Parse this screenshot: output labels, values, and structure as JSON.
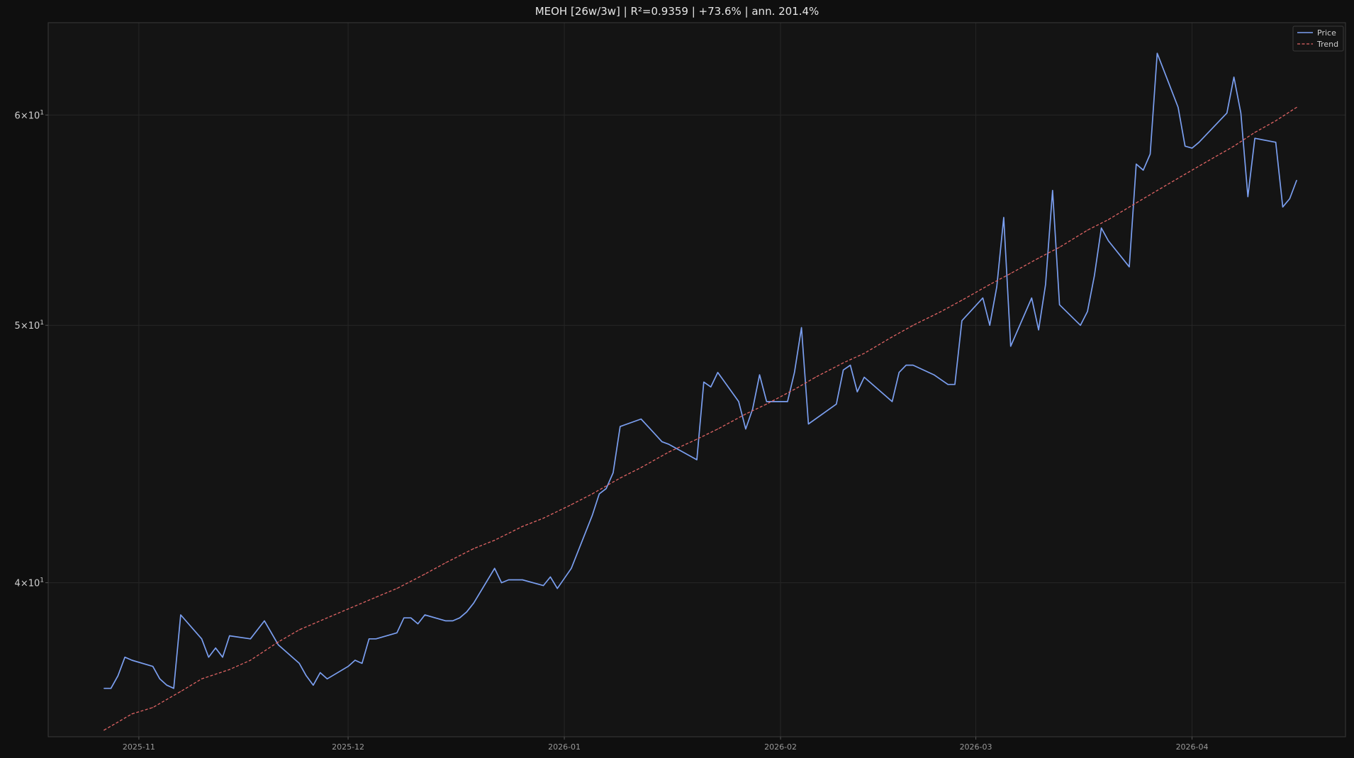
{
  "chart_data": {
    "type": "line",
    "title": "MEOH  [26w/3w]  |  R²=0.9359  |  +73.6%  |  ann. 201.4%",
    "xlabel": "",
    "ylabel": "",
    "x_scale": "date",
    "y_scale": "log",
    "xlim": [
      "2025-10-19",
      "2026-04-23"
    ],
    "ylim": [
      35,
      65
    ],
    "grid": true,
    "legend_position": "top-right",
    "x_ticks": [
      {
        "label": "2025-11",
        "value": "2025-11-01"
      },
      {
        "label": "2025-12",
        "value": "2025-12-01"
      },
      {
        "label": "2026-01",
        "value": "2026-01-01"
      },
      {
        "label": "2026-02",
        "value": "2026-02-01"
      },
      {
        "label": "2026-03",
        "value": "2026-03-01"
      },
      {
        "label": "2026-04",
        "value": "2026-04-01"
      }
    ],
    "y_ticks": [
      {
        "base": "4",
        "exp": "1",
        "value": 40
      },
      {
        "base": "5",
        "exp": "1",
        "value": 50
      },
      {
        "base": "6",
        "exp": "1",
        "value": 60
      }
    ],
    "colors": {
      "background": "#0f0f0f",
      "plot_background": "#141414",
      "frame": "#3a3a3a",
      "grid": "#262626",
      "price": "#7b9ff0",
      "trend": "#e06464"
    },
    "series": [
      {
        "name": "Price",
        "style": "solid",
        "points": [
          [
            "2025-10-27",
            36.5
          ],
          [
            "2025-10-28",
            36.5
          ],
          [
            "2025-10-29",
            36.9
          ],
          [
            "2025-10-30",
            37.5
          ],
          [
            "2025-10-31",
            37.4
          ],
          [
            "2025-11-03",
            37.2
          ],
          [
            "2025-11-04",
            36.8
          ],
          [
            "2025-11-05",
            36.6
          ],
          [
            "2025-11-06",
            36.5
          ],
          [
            "2025-11-07",
            38.9
          ],
          [
            "2025-11-10",
            38.1
          ],
          [
            "2025-11-11",
            37.5
          ],
          [
            "2025-11-12",
            37.8
          ],
          [
            "2025-11-13",
            37.5
          ],
          [
            "2025-11-14",
            38.2
          ],
          [
            "2025-11-17",
            38.1
          ],
          [
            "2025-11-18",
            38.4
          ],
          [
            "2025-11-19",
            38.7
          ],
          [
            "2025-11-20",
            38.3
          ],
          [
            "2025-11-21",
            37.9
          ],
          [
            "2025-11-24",
            37.3
          ],
          [
            "2025-11-25",
            36.9
          ],
          [
            "2025-11-26",
            36.6
          ],
          [
            "2025-11-27",
            37.0
          ],
          [
            "2025-11-28",
            36.8
          ],
          [
            "2025-12-01",
            37.2
          ],
          [
            "2025-12-02",
            37.4
          ],
          [
            "2025-12-03",
            37.3
          ],
          [
            "2025-12-04",
            38.1
          ],
          [
            "2025-12-05",
            38.1
          ],
          [
            "2025-12-08",
            38.3
          ],
          [
            "2025-12-09",
            38.8
          ],
          [
            "2025-12-10",
            38.8
          ],
          [
            "2025-12-11",
            38.6
          ],
          [
            "2025-12-12",
            38.9
          ],
          [
            "2025-12-15",
            38.7
          ],
          [
            "2025-12-16",
            38.7
          ],
          [
            "2025-12-17",
            38.8
          ],
          [
            "2025-12-18",
            39.0
          ],
          [
            "2025-12-19",
            39.3
          ],
          [
            "2025-12-22",
            40.5
          ],
          [
            "2025-12-23",
            40.0
          ],
          [
            "2025-12-24",
            40.1
          ],
          [
            "2025-12-26",
            40.1
          ],
          [
            "2025-12-29",
            39.9
          ],
          [
            "2025-12-30",
            40.2
          ],
          [
            "2025-12-31",
            39.8
          ],
          [
            "2026-01-02",
            40.5
          ],
          [
            "2026-01-05",
            42.4
          ],
          [
            "2026-01-06",
            43.2
          ],
          [
            "2026-01-07",
            43.4
          ],
          [
            "2026-01-08",
            44.0
          ],
          [
            "2026-01-09",
            45.8
          ],
          [
            "2026-01-12",
            46.1
          ],
          [
            "2026-01-13",
            45.8
          ],
          [
            "2026-01-14",
            45.5
          ],
          [
            "2026-01-15",
            45.2
          ],
          [
            "2026-01-16",
            45.1
          ],
          [
            "2026-01-20",
            44.5
          ],
          [
            "2026-01-21",
            47.6
          ],
          [
            "2026-01-22",
            47.4
          ],
          [
            "2026-01-23",
            48.0
          ],
          [
            "2026-01-26",
            46.8
          ],
          [
            "2026-01-27",
            45.7
          ],
          [
            "2026-01-28",
            46.5
          ],
          [
            "2026-01-29",
            47.9
          ],
          [
            "2026-01-30",
            46.8
          ],
          [
            "2026-02-02",
            46.8
          ],
          [
            "2026-02-03",
            48.0
          ],
          [
            "2026-02-04",
            49.9
          ],
          [
            "2026-02-05",
            45.9
          ],
          [
            "2026-02-09",
            46.7
          ],
          [
            "2026-02-10",
            48.1
          ],
          [
            "2026-02-11",
            48.3
          ],
          [
            "2026-02-12",
            47.2
          ],
          [
            "2026-02-13",
            47.8
          ],
          [
            "2026-02-17",
            46.8
          ],
          [
            "2026-02-18",
            48.0
          ],
          [
            "2026-02-19",
            48.3
          ],
          [
            "2026-02-20",
            48.3
          ],
          [
            "2026-02-23",
            47.9
          ],
          [
            "2026-02-24",
            47.7
          ],
          [
            "2026-02-25",
            47.5
          ],
          [
            "2026-02-26",
            47.5
          ],
          [
            "2026-02-27",
            50.2
          ],
          [
            "2026-03-02",
            51.2
          ],
          [
            "2026-03-03",
            50.0
          ],
          [
            "2026-03-04",
            51.7
          ],
          [
            "2026-03-05",
            54.9
          ],
          [
            "2026-03-06",
            49.1
          ],
          [
            "2026-03-09",
            51.2
          ],
          [
            "2026-03-10",
            49.8
          ],
          [
            "2026-03-11",
            51.8
          ],
          [
            "2026-03-12",
            56.2
          ],
          [
            "2026-03-13",
            50.9
          ],
          [
            "2026-03-16",
            50.0
          ],
          [
            "2026-03-17",
            50.6
          ],
          [
            "2026-03-18",
            52.2
          ],
          [
            "2026-03-19",
            54.4
          ],
          [
            "2026-03-20",
            53.8
          ],
          [
            "2026-03-23",
            52.6
          ],
          [
            "2026-03-24",
            57.5
          ],
          [
            "2026-03-25",
            57.2
          ],
          [
            "2026-03-26",
            58.0
          ],
          [
            "2026-03-27",
            63.3
          ],
          [
            "2026-03-30",
            60.4
          ],
          [
            "2026-03-31",
            58.4
          ],
          [
            "2026-04-01",
            58.3
          ],
          [
            "2026-04-02",
            58.6
          ],
          [
            "2026-04-06",
            60.1
          ],
          [
            "2026-04-07",
            62.0
          ],
          [
            "2026-04-08",
            60.1
          ],
          [
            "2026-04-09",
            55.9
          ],
          [
            "2026-04-10",
            58.8
          ],
          [
            "2026-04-13",
            58.6
          ],
          [
            "2026-04-14",
            55.4
          ],
          [
            "2026-04-15",
            55.8
          ],
          [
            "2026-04-16",
            56.7
          ]
        ]
      },
      {
        "name": "Trend",
        "style": "dashed",
        "points": [
          [
            "2025-10-27",
            35.2
          ],
          [
            "2025-10-31",
            35.7
          ],
          [
            "2025-11-03",
            35.9
          ],
          [
            "2025-11-07",
            36.4
          ],
          [
            "2025-11-10",
            36.8
          ],
          [
            "2025-11-14",
            37.1
          ],
          [
            "2025-11-17",
            37.4
          ],
          [
            "2025-11-21",
            38.0
          ],
          [
            "2025-11-24",
            38.4
          ],
          [
            "2025-11-28",
            38.8
          ],
          [
            "2025-12-01",
            39.1
          ],
          [
            "2025-12-05",
            39.5
          ],
          [
            "2025-12-08",
            39.8
          ],
          [
            "2025-12-12",
            40.3
          ],
          [
            "2025-12-15",
            40.7
          ],
          [
            "2025-12-19",
            41.2
          ],
          [
            "2025-12-22",
            41.5
          ],
          [
            "2025-12-26",
            42.0
          ],
          [
            "2025-12-29",
            42.3
          ],
          [
            "2026-01-02",
            42.8
          ],
          [
            "2026-01-05",
            43.2
          ],
          [
            "2026-01-09",
            43.8
          ],
          [
            "2026-01-12",
            44.2
          ],
          [
            "2026-01-16",
            44.8
          ],
          [
            "2026-01-20",
            45.3
          ],
          [
            "2026-01-23",
            45.7
          ],
          [
            "2026-01-27",
            46.3
          ],
          [
            "2026-01-30",
            46.7
          ],
          [
            "2026-02-03",
            47.3
          ],
          [
            "2026-02-06",
            47.8
          ],
          [
            "2026-02-10",
            48.4
          ],
          [
            "2026-02-13",
            48.8
          ],
          [
            "2026-02-17",
            49.5
          ],
          [
            "2026-02-20",
            50.0
          ],
          [
            "2026-02-24",
            50.6
          ],
          [
            "2026-02-27",
            51.1
          ],
          [
            "2026-03-03",
            51.8
          ],
          [
            "2026-03-06",
            52.3
          ],
          [
            "2026-03-10",
            53.0
          ],
          [
            "2026-03-13",
            53.5
          ],
          [
            "2026-03-17",
            54.3
          ],
          [
            "2026-03-20",
            54.8
          ],
          [
            "2026-03-24",
            55.6
          ],
          [
            "2026-03-27",
            56.2
          ],
          [
            "2026-03-31",
            57.0
          ],
          [
            "2026-04-03",
            57.6
          ],
          [
            "2026-04-07",
            58.4
          ],
          [
            "2026-04-10",
            59.1
          ],
          [
            "2026-04-13",
            59.7
          ],
          [
            "2026-04-16",
            60.4
          ]
        ]
      }
    ]
  }
}
